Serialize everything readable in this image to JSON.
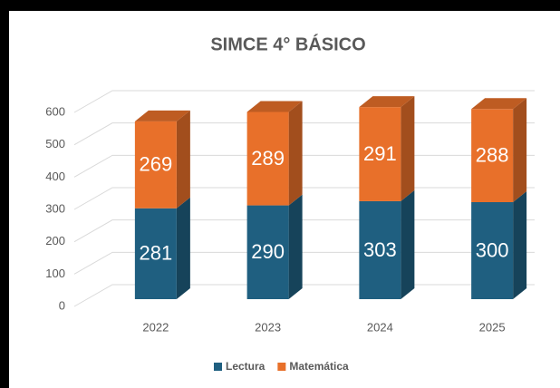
{
  "chart_data": {
    "type": "bar",
    "stacked": true,
    "title": "SIMCE 4° BÁSICO",
    "categories": [
      "2022",
      "2023",
      "2024",
      "2025"
    ],
    "series": [
      {
        "name": "Lectura",
        "color": "#1f5f80",
        "values": [
          281,
          290,
          303,
          300
        ]
      },
      {
        "name": "Matemática",
        "color": "#e8702a",
        "values": [
          269,
          289,
          291,
          288
        ]
      }
    ],
    "ylim": [
      0,
      600
    ],
    "yticks": [
      0,
      100,
      200,
      300,
      400,
      500,
      600
    ],
    "grid": true,
    "legend": "bottom"
  }
}
